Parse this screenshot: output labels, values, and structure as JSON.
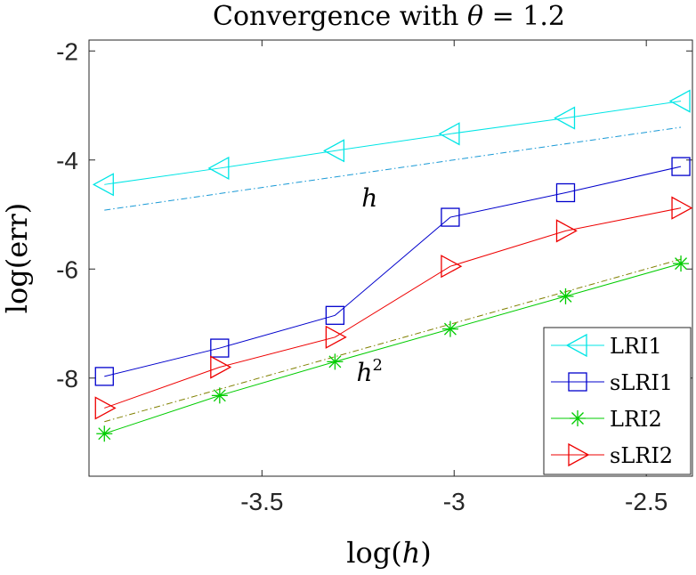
{
  "chart_data": {
    "type": "line",
    "title_prefix": "Convergence with ",
    "title_symbol": "θ",
    "title_suffix": " = 1.2",
    "xlabel_prefix": "log(",
    "xlabel_symbol": "h",
    "xlabel_suffix": ")",
    "ylabel": "log(err)",
    "xlim": [
      -3.95,
      -2.38
    ],
    "ylim": [
      -9.8,
      -1.8
    ],
    "xticks": [
      -3.5,
      -3,
      -2.5
    ],
    "xtick_labels": [
      "-3.5",
      "-3",
      "-2.5"
    ],
    "yticks": [
      -8,
      -6,
      -4,
      -2
    ],
    "ytick_labels": [
      "-8",
      "-6",
      "-4",
      "-2"
    ],
    "x": [
      -3.91,
      -3.61,
      -3.31,
      -3.01,
      -2.71,
      -2.41
    ],
    "series": [
      {
        "name": "LRI1",
        "color": "#00e5e5",
        "marker": "triangle-left",
        "values": [
          -4.45,
          -4.15,
          -3.83,
          -3.52,
          -3.23,
          -2.92
        ]
      },
      {
        "name": "sLRI1",
        "color": "#0000cc",
        "marker": "square",
        "values": [
          -7.97,
          -7.45,
          -6.85,
          -5.05,
          -4.6,
          -4.12
        ]
      },
      {
        "name": "LRI2",
        "color": "#00cc00",
        "marker": "asterisk",
        "values": [
          -9.02,
          -8.32,
          -7.7,
          -7.1,
          -6.5,
          -5.9
        ]
      },
      {
        "name": "sLRI2",
        "color": "#ee0000",
        "marker": "triangle-right",
        "values": [
          -8.55,
          -7.8,
          -7.25,
          -5.95,
          -5.3,
          -4.88
        ]
      }
    ],
    "reference_lines": [
      {
        "label": "h",
        "color": "#1a9ad6",
        "x": [
          -3.91,
          -2.41
        ],
        "y": [
          -4.92,
          -3.4
        ]
      },
      {
        "label": "h2",
        "color": "#808000",
        "x": [
          -3.91,
          -2.41
        ],
        "y": [
          -8.8,
          -5.82
        ]
      }
    ],
    "annotations": [
      {
        "base": "h",
        "sup": "",
        "x": -3.22,
        "y": -4.85
      },
      {
        "base": "h",
        "sup": "2",
        "x": -3.22,
        "y": -8.05
      }
    ],
    "legend_position": "bottom-right",
    "grid": false
  }
}
